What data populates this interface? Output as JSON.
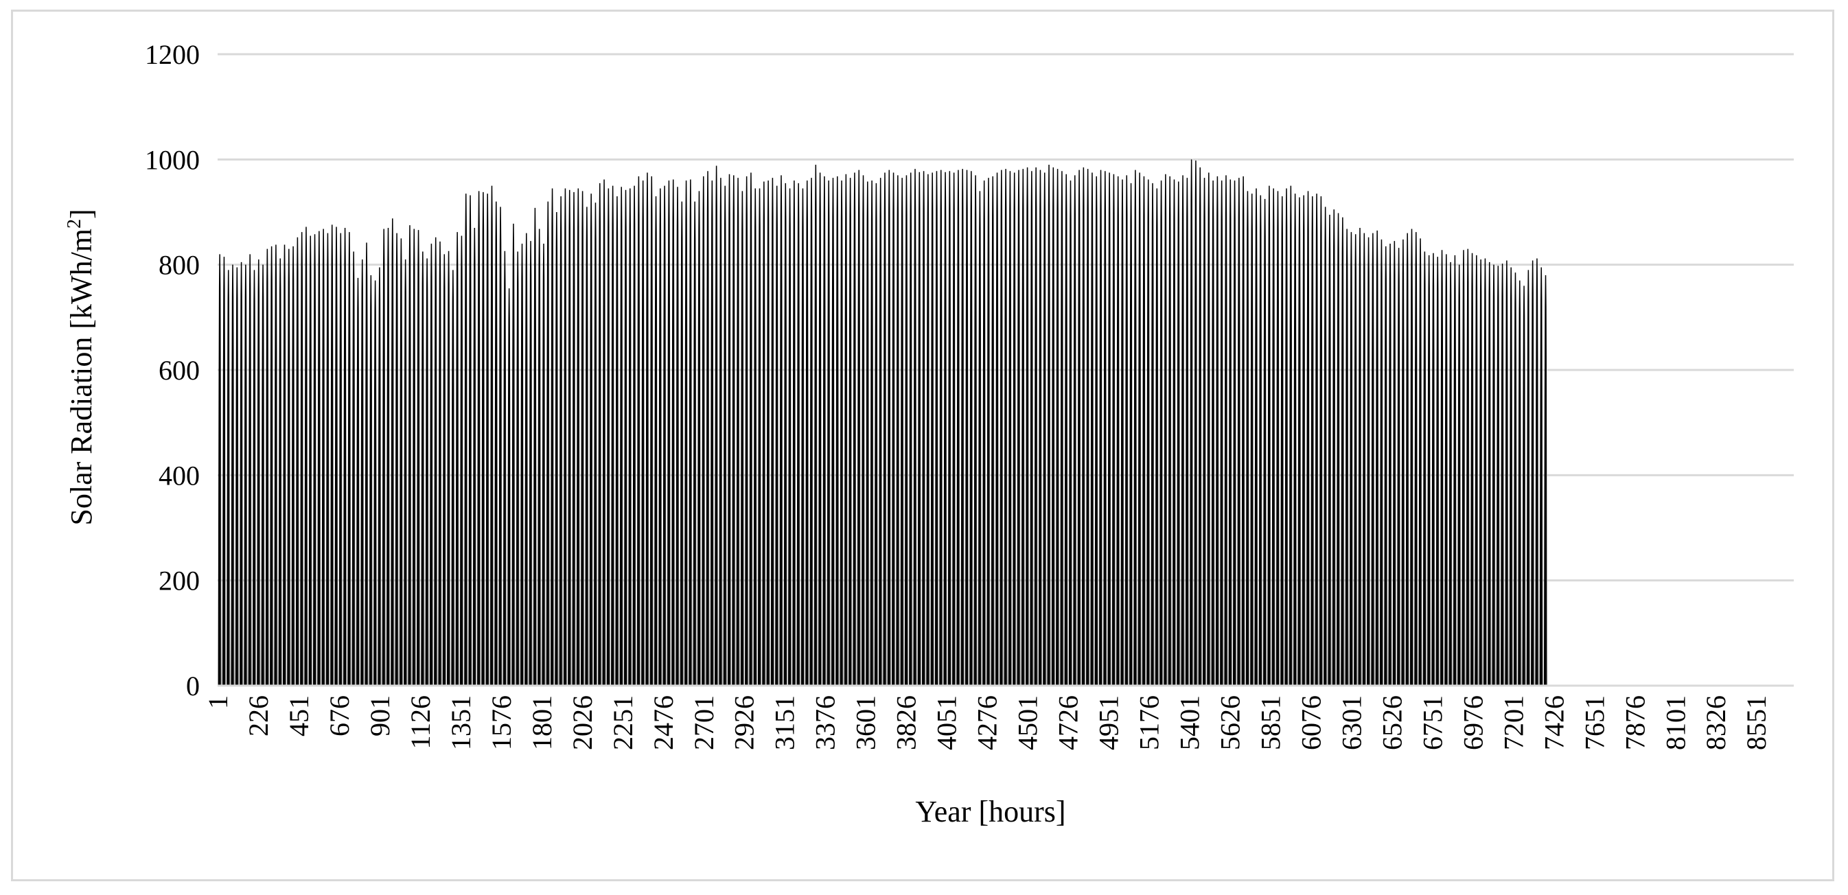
{
  "chart_data": {
    "type": "area",
    "title": "",
    "xlabel": "Year [hours]",
    "ylabel": "Solar Radiation  [kWh/m",
    "ylabel_sup": "2",
    "ylabel_close": "]",
    "ylim": [
      0,
      1200
    ],
    "yticks": [
      0,
      200,
      400,
      600,
      800,
      1000,
      1200
    ],
    "xlim": [
      1,
      8760
    ],
    "xticks": [
      1,
      226,
      451,
      676,
      901,
      1126,
      1351,
      1576,
      1801,
      2026,
      2251,
      2476,
      2701,
      2926,
      3151,
      3376,
      3601,
      3826,
      4051,
      4276,
      4501,
      4726,
      4951,
      5176,
      5401,
      5626,
      5851,
      6076,
      6301,
      6526,
      6751,
      6976,
      7201,
      7426,
      7651,
      7876,
      8101,
      8326,
      8551
    ],
    "grid": true,
    "legend": "none",
    "series_color": "#000000",
    "grid_color": "#d9d9d9",
    "series": [
      {
        "x_start": 1,
        "x_step": 24,
        "values": [
          820,
          815,
          790,
          800,
          795,
          805,
          800,
          820,
          790,
          810,
          800,
          830,
          835,
          838,
          812,
          838,
          830,
          835,
          852,
          862,
          872,
          855,
          858,
          864,
          868,
          860,
          876,
          872,
          860,
          870,
          862,
          825,
          775,
          810,
          842,
          780,
          770,
          795,
          868,
          870,
          888,
          860,
          850,
          810,
          875,
          868,
          866,
          825,
          812,
          840,
          852,
          844,
          820,
          826,
          790,
          862,
          855,
          935,
          932,
          870,
          940,
          938,
          935,
          950,
          920,
          910,
          826,
          755,
          878,
          825,
          840,
          860,
          845,
          908,
          868,
          840,
          920,
          945,
          900,
          930,
          945,
          942,
          938,
          945,
          940,
          910,
          935,
          918,
          955,
          962,
          945,
          950,
          930,
          948,
          942,
          945,
          950,
          968,
          960,
          975,
          968,
          930,
          945,
          950,
          960,
          962,
          948,
          920,
          960,
          962,
          920,
          940,
          968,
          978,
          960,
          988,
          965,
          950,
          972,
          970,
          965,
          940,
          968,
          975,
          945,
          945,
          958,
          960,
          965,
          950,
          970,
          955,
          945,
          960,
          955,
          945,
          960,
          965,
          990,
          975,
          968,
          960,
          965,
          968,
          960,
          972,
          965,
          975,
          980,
          970,
          958,
          960,
          955,
          965,
          975,
          980,
          975,
          970,
          965,
          970,
          975,
          982,
          976,
          978,
          972,
          975,
          978,
          980,
          976,
          978,
          975,
          980,
          982,
          980,
          978,
          970,
          940,
          960,
          965,
          968,
          975,
          980,
          982,
          978,
          975,
          980,
          982,
          985,
          978,
          985,
          980,
          975,
          990,
          985,
          982,
          978,
          972,
          960,
          970,
          980,
          985,
          982,
          975,
          968,
          980,
          978,
          975,
          972,
          968,
          962,
          970,
          955,
          980,
          975,
          968,
          962,
          955,
          945,
          960,
          972,
          968,
          962,
          958,
          970,
          965,
          1000,
          998,
          985,
          965,
          975,
          960,
          968,
          960,
          970,
          962,
          960,
          965,
          968,
          940,
          935,
          945,
          932,
          925,
          950,
          945,
          940,
          930,
          945,
          950,
          935,
          928,
          932,
          940,
          930,
          935,
          930,
          910,
          895,
          905,
          898,
          890,
          868,
          862,
          858,
          870,
          860,
          852,
          860,
          865,
          848,
          835,
          840,
          845,
          832,
          848,
          860,
          868,
          862,
          850,
          825,
          818,
          822,
          815,
          828,
          820,
          805,
          818,
          800,
          828,
          830,
          822,
          818,
          810,
          812,
          805,
          800,
          798,
          802,
          808,
          795,
          785,
          770,
          760,
          790,
          808,
          812,
          795,
          780
        ]
      }
    ]
  }
}
